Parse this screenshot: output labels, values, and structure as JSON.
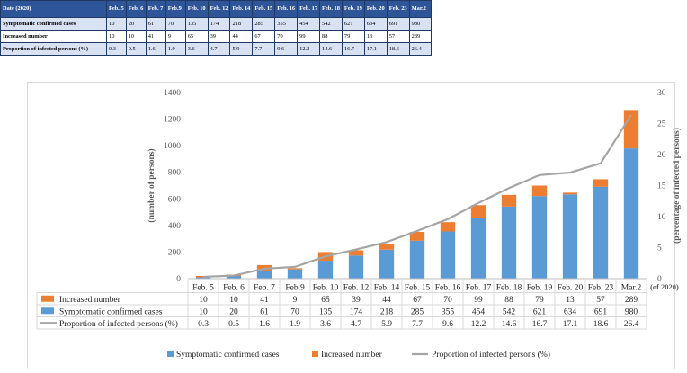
{
  "table": {
    "header_label": "Date (2020)",
    "dates": [
      "Feb. 5",
      "Feb. 6",
      "Feb. 7",
      "Feb.9",
      "Feb. 10",
      "Feb. 12",
      "Feb. 14",
      "Feb. 15",
      "Feb. 16",
      "Feb. 17",
      "Feb. 18",
      "Feb. 19",
      "Feb. 20",
      "Feb. 23",
      "Mar.2"
    ],
    "rows": [
      {
        "label": "Symptomatic confirmed cases",
        "values": [
          "10",
          "20",
          "61",
          "70",
          "135",
          "174",
          "218",
          "285",
          "355",
          "454",
          "542",
          "621",
          "634",
          "691",
          "980"
        ]
      },
      {
        "label": "Increased number",
        "values": [
          "10",
          "10",
          "41",
          "9",
          "65",
          "39",
          "44",
          "67",
          "70",
          "99",
          "88",
          "79",
          "13",
          "57",
          "289"
        ]
      },
      {
        "label": "Proportion of infected persons (%)",
        "values": [
          "0.3",
          "0.5",
          "1.6",
          "1.9",
          "3.6",
          "4.7",
          "5.9",
          "7.7",
          "9.6",
          "12.2",
          "14.6",
          "16.7",
          "17.1",
          "18.6",
          "26.4"
        ]
      }
    ]
  },
  "chart_data": {
    "type": "bar",
    "categories": [
      "Feb. 5",
      "Feb. 6",
      "Feb. 7",
      "Feb.9",
      "Feb. 10",
      "Feb. 12",
      "Feb. 14",
      "Feb. 15",
      "Feb. 16",
      "Feb. 17",
      "Feb. 18",
      "Feb. 19",
      "Feb. 20",
      "Feb. 23",
      "Mar.2"
    ],
    "series": [
      {
        "name": "Symptomatic confirmed cases",
        "kind": "stacked-bar",
        "axis": "left",
        "color": "#5b9bd5",
        "values": [
          10,
          20,
          61,
          70,
          135,
          174,
          218,
          285,
          355,
          454,
          542,
          621,
          634,
          691,
          980
        ]
      },
      {
        "name": "Increased number",
        "kind": "stacked-bar",
        "axis": "left",
        "color": "#ed7d31",
        "values": [
          10,
          10,
          41,
          9,
          65,
          39,
          44,
          67,
          70,
          99,
          88,
          79,
          13,
          57,
          289
        ]
      },
      {
        "name": "Proportion of infected persons (%)",
        "kind": "line",
        "axis": "right",
        "color": "#a5a5a5",
        "values": [
          0.3,
          0.5,
          1.6,
          1.9,
          3.6,
          4.7,
          5.9,
          7.7,
          9.6,
          12.2,
          14.6,
          16.7,
          17.1,
          18.6,
          26.4
        ]
      }
    ],
    "table_order": [
      1,
      0,
      2
    ],
    "ylabel": "(number of persons)",
    "y2label": "(percentage of infected persons)",
    "xunit": "(of 2020)",
    "ylim": [
      0,
      1400
    ],
    "yticks": [
      0,
      200,
      400,
      600,
      800,
      1000,
      1200,
      1400
    ],
    "y2lim": [
      0,
      30
    ],
    "y2ticks": [
      0,
      5,
      10,
      15,
      20,
      25,
      30
    ],
    "grid": false,
    "legend_position": "bottom"
  }
}
